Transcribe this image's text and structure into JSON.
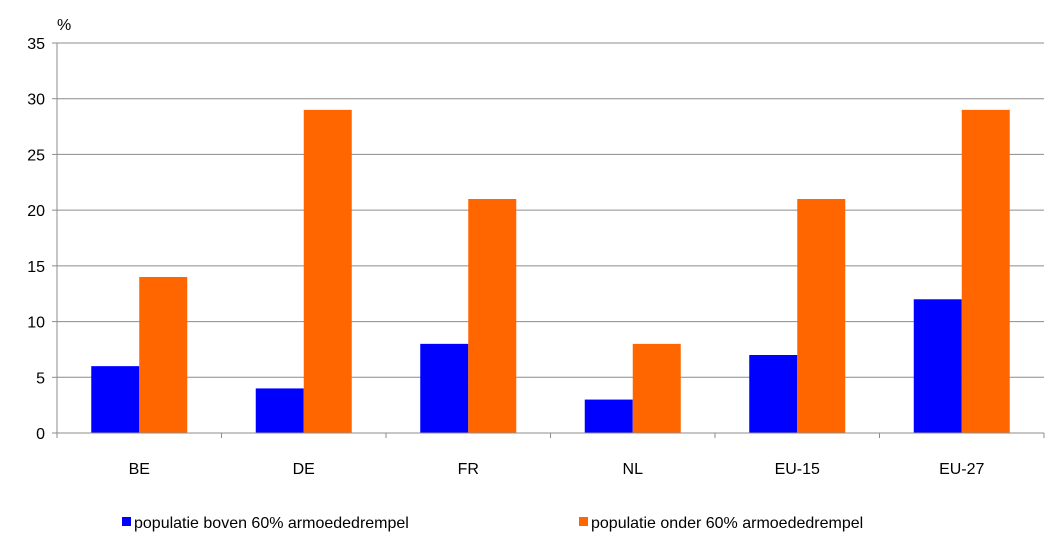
{
  "chart_data": {
    "type": "bar",
    "ylabel": "%",
    "ylim": [
      0,
      35
    ],
    "y_ticks": [
      0,
      5,
      10,
      15,
      20,
      25,
      30,
      35
    ],
    "grid": true,
    "legend_position": "bottom",
    "categories": [
      "BE",
      "DE",
      "FR",
      "NL",
      "EU-15",
      "EU-27"
    ],
    "series": [
      {
        "name": "populatie boven 60% armoededrempel",
        "color": "#0000FF",
        "values": [
          6,
          4,
          8,
          3,
          7,
          12
        ]
      },
      {
        "name": "populatie onder 60% armoededrempel",
        "color": "#FF6600",
        "values": [
          14,
          29,
          21,
          8,
          21,
          29
        ]
      }
    ]
  }
}
